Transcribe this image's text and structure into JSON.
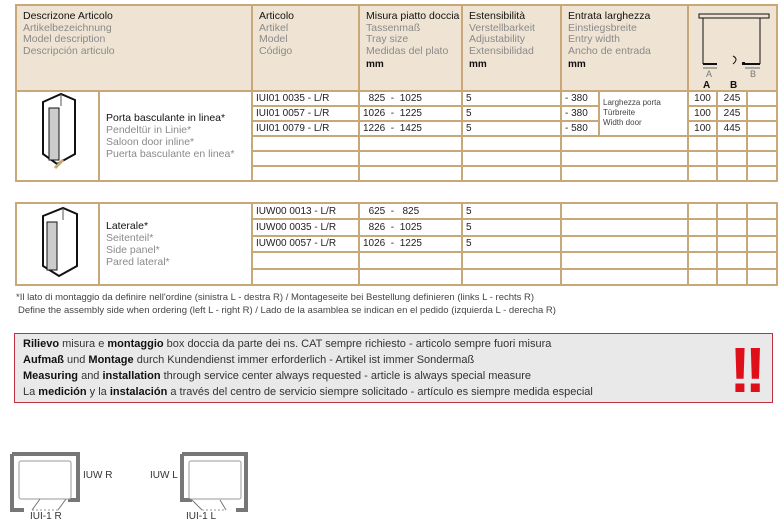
{
  "header": {
    "desc": [
      "Descrizone Articolo",
      "Artikelbezeichnung",
      "Model description",
      "Descripción articulo"
    ],
    "article": [
      "Articolo",
      "Artikel",
      "Model",
      "Código"
    ],
    "size": [
      "Misura piatto doccia",
      "Tassenmaß",
      "Tray size",
      "Medidas del plato",
      "mm"
    ],
    "ext": [
      "Estensibilità",
      "Verstellbarkeit",
      "Adjustability",
      "Extensibilidad",
      "mm"
    ],
    "entry": [
      "Entrata larghezza",
      "Einstiegsbreite",
      "Entry width",
      "Ancho de entrada",
      "mm"
    ],
    "diagram": {
      "a": "A",
      "b": "B",
      "col_a": "A",
      "col_b": "B"
    }
  },
  "group1": {
    "name": [
      "Porta basculante in linea*",
      "Pendeltür in Linie*",
      "Saloon door inline*",
      "Puerta basculante en linea*"
    ],
    "entry_note": [
      "Larghezza porta",
      "Türbreite",
      "Width door"
    ],
    "rows": [
      {
        "article": "IUI01 0035 - L/R",
        "min": "825",
        "max": "1025",
        "ext": "5",
        "entry": "- 380",
        "a": "100",
        "b": "245"
      },
      {
        "article": "IUI01 0057 - L/R",
        "min": "1026",
        "max": "1225",
        "ext": "5",
        "entry": "- 380",
        "a": "100",
        "b": "245"
      },
      {
        "article": "IUI01 0079 - L/R",
        "min": "1226",
        "max": "1425",
        "ext": "5",
        "entry": "- 580",
        "a": "100",
        "b": "445"
      }
    ]
  },
  "group2": {
    "name": [
      "Laterale*",
      "Seitenteil*",
      "Side panel*",
      "Pared lateral*"
    ],
    "rows": [
      {
        "article": "IUW00 0013 - L/R",
        "min": "625",
        "max": "825",
        "ext": "5"
      },
      {
        "article": "IUW00 0035 - L/R",
        "min": "826",
        "max": "1025",
        "ext": "5"
      },
      {
        "article": "IUW00 0057 - L/R",
        "min": "1026",
        "max": "1225",
        "ext": "5"
      }
    ]
  },
  "footnote": [
    "*Il lato di montaggio da definire nell'ordine (sinistra L - destra R) / Montageseite bei Bestellung definieren (links L - rechts R)",
    "Define the assembly side when ordering (left L - right R) / Lado de la asamblea se indican en el pedido (izquierda L - derecha R)"
  ],
  "warning": {
    "l1": [
      "Rilievo",
      " misura e ",
      "montaggio",
      " box doccia da parte dei ns. CAT sempre richiesto - articolo sempre fuori misura"
    ],
    "l2": [
      "Aufmaß",
      " und ",
      "Montage",
      " durch Kundendienst immer erforderlich - Artikel ist immer Sondermaß"
    ],
    "l3": [
      "Measuring",
      " and ",
      "installation",
      " through service center always requested - article is always special measure"
    ],
    "l4": [
      "La ",
      "medición",
      " y la ",
      "instalación",
      " a través del centro de servicio siempre solicitado - artículo es siempre medida especial"
    ],
    "mark": "!!",
    "color": "#e0101a"
  },
  "plans": {
    "r_side": "IUW R",
    "r_door": "IUI-1 R",
    "l_side": "IUW L",
    "l_door": "IUI-1 L"
  }
}
